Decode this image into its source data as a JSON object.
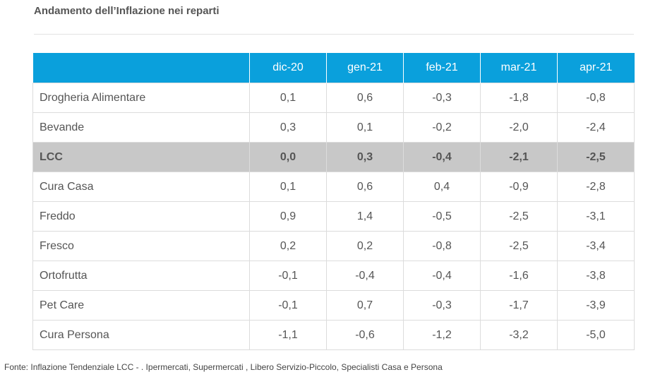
{
  "title": "Andamento dell’Inflazione nei reparti",
  "source": "Fonte: Inflazione Tendenziale LCC  -  . Ipermercati, Supermercati , Libero Servizio-Piccolo, Specialisti Casa e Persona",
  "chart_data": {
    "type": "table",
    "title": "Andamento dell’Inflazione nei reparti",
    "columns": [
      "",
      "dic-20",
      "gen-21",
      "feb-21",
      "mar-21",
      "apr-21"
    ],
    "rows": [
      [
        "Drogheria Alimentare",
        "0,1",
        "0,6",
        "-0,3",
        "-1,8",
        "-0,8"
      ],
      [
        "Bevande",
        "0,3",
        "0,1",
        "-0,2",
        "-2,0",
        "-2,4"
      ],
      [
        "LCC",
        "0,0",
        "0,3",
        "-0,4",
        "-2,1",
        "-2,5"
      ],
      [
        "Cura Casa",
        "0,1",
        "0,6",
        "0,4",
        "-0,9",
        "-2,8"
      ],
      [
        "Freddo",
        "0,9",
        "1,4",
        "-0,5",
        "-2,5",
        "-3,1"
      ],
      [
        "Fresco",
        "0,2",
        "0,2",
        "-0,8",
        "-2,5",
        "-3,4"
      ],
      [
        "Ortofrutta",
        "-0,1",
        "-0,4",
        "-0,4",
        "-1,6",
        "-3,8"
      ],
      [
        "Pet Care",
        "-0,1",
        "0,7",
        "-0,3",
        "-1,7",
        "-3,9"
      ],
      [
        "Cura Persona",
        "-1,1",
        "-0,6",
        "-1,2",
        "-3,2",
        "-5,0"
      ]
    ],
    "highlighted_row": "LCC",
    "colors": {
      "header": "#0aa0dc",
      "highlight": "#c8c8c8"
    }
  }
}
